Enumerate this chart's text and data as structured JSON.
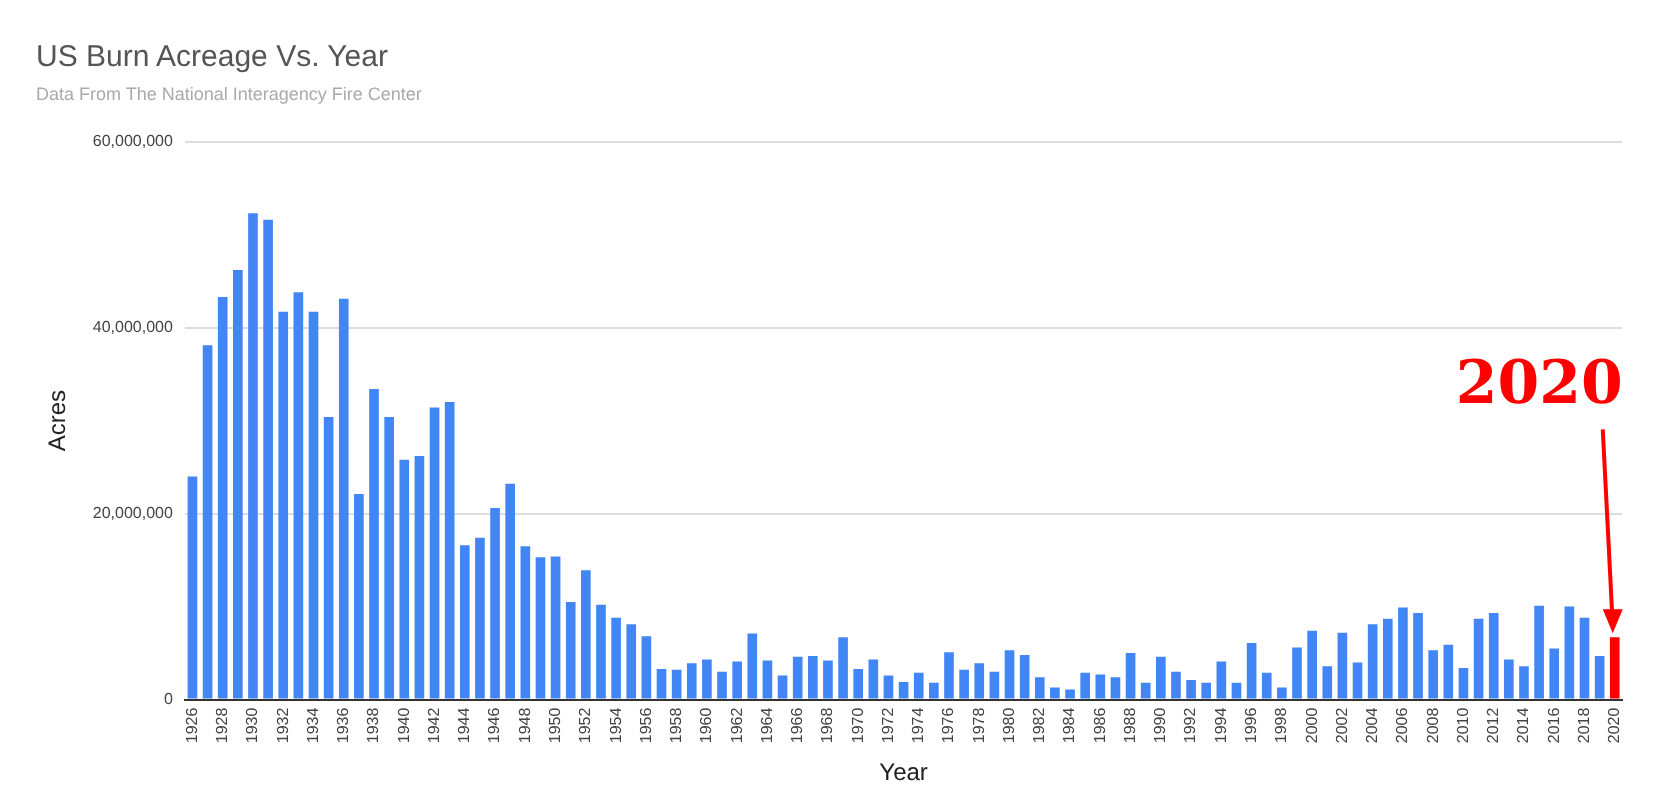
{
  "chart_data": {
    "type": "bar",
    "title": "US Burn Acreage Vs. Year",
    "subtitle": "Data From The National Interagency Fire Center",
    "xlabel": "Year",
    "ylabel": "Acres",
    "categories": [
      "1926",
      null,
      "1928",
      null,
      "1930",
      null,
      "1932",
      null,
      "1934",
      null,
      "1936",
      null,
      "1938",
      null,
      "1940",
      null,
      "1942",
      null,
      "1944",
      null,
      "1946",
      null,
      "1948",
      null,
      "1950",
      null,
      "1952",
      null,
      "1954",
      null,
      "1956",
      null,
      "1958",
      null,
      "1960",
      null,
      "1962",
      null,
      "1964",
      null,
      "1966",
      null,
      "1968",
      null,
      "1970",
      null,
      "1972",
      null,
      "1974",
      null,
      "1976",
      null,
      "1978",
      null,
      "1980",
      null,
      "1982",
      null,
      "1984",
      null,
      "1986",
      null,
      "1988",
      null,
      "1990",
      null,
      "1992",
      null,
      "1994",
      null,
      "1996",
      null,
      "1998",
      null,
      "2000",
      null,
      "2002",
      null,
      "2004",
      null,
      "2006",
      null,
      "2008",
      null,
      "2010",
      null,
      "2012",
      null,
      "2014",
      null,
      "2016",
      null,
      "2018",
      null,
      "2020"
    ],
    "values": [
      24000000,
      38100000,
      43300000,
      46200000,
      52300000,
      51600000,
      41700000,
      43800000,
      41700000,
      30400000,
      43100000,
      22100000,
      33400000,
      30400000,
      25800000,
      26200000,
      31400000,
      32000000,
      16600000,
      17400000,
      20600000,
      23200000,
      16500000,
      15300000,
      15400000,
      10500000,
      13900000,
      10200000,
      8800000,
      8100000,
      6800000,
      3300000,
      3200000,
      3900000,
      4300000,
      3000000,
      4100000,
      7100000,
      4200000,
      2600000,
      4600000,
      4700000,
      4200000,
      6700000,
      3300000,
      4300000,
      2600000,
      1900000,
      2900000,
      1800000,
      5100000,
      3200000,
      3900000,
      3000000,
      5300000,
      4800000,
      2400000,
      1300000,
      1100000,
      2900000,
      2700000,
      2400000,
      5000000,
      1800000,
      4600000,
      3000000,
      2100000,
      1800000,
      4100000,
      1800000,
      6100000,
      2900000,
      1300000,
      5600000,
      7400000,
      3600000,
      7200000,
      4000000,
      8100000,
      8700000,
      9900000,
      9300000,
      5300000,
      5900000,
      3400000,
      8700000,
      9300000,
      4300000,
      3600000,
      10100000,
      5500000,
      10000000,
      8800000,
      4700000,
      6700000
    ],
    "colors": [
      "#4285f4",
      "#4285f4",
      "#4285f4",
      "#4285f4",
      "#4285f4",
      "#4285f4",
      "#4285f4",
      "#4285f4",
      "#4285f4",
      "#4285f4",
      "#4285f4",
      "#4285f4",
      "#4285f4",
      "#4285f4",
      "#4285f4",
      "#4285f4",
      "#4285f4",
      "#4285f4",
      "#4285f4",
      "#4285f4",
      "#4285f4",
      "#4285f4",
      "#4285f4",
      "#4285f4",
      "#4285f4",
      "#4285f4",
      "#4285f4",
      "#4285f4",
      "#4285f4",
      "#4285f4",
      "#4285f4",
      "#4285f4",
      "#4285f4",
      "#4285f4",
      "#4285f4",
      "#4285f4",
      "#4285f4",
      "#4285f4",
      "#4285f4",
      "#4285f4",
      "#4285f4",
      "#4285f4",
      "#4285f4",
      "#4285f4",
      "#4285f4",
      "#4285f4",
      "#4285f4",
      "#4285f4",
      "#4285f4",
      "#4285f4",
      "#4285f4",
      "#4285f4",
      "#4285f4",
      "#4285f4",
      "#4285f4",
      "#4285f4",
      "#4285f4",
      "#4285f4",
      "#4285f4",
      "#4285f4",
      "#4285f4",
      "#4285f4",
      "#4285f4",
      "#4285f4",
      "#4285f4",
      "#4285f4",
      "#4285f4",
      "#4285f4",
      "#4285f4",
      "#4285f4",
      "#4285f4",
      "#4285f4",
      "#4285f4",
      "#4285f4",
      "#4285f4",
      "#4285f4",
      "#4285f4",
      "#4285f4",
      "#4285f4",
      "#4285f4",
      "#4285f4",
      "#4285f4",
      "#4285f4",
      "#4285f4",
      "#4285f4",
      "#4285f4",
      "#4285f4",
      "#4285f4",
      "#4285f4",
      "#4285f4",
      "#4285f4",
      "#4285f4",
      "#4285f4",
      "#4285f4",
      "#ff0000"
    ],
    "ylim": [
      0,
      60000000
    ],
    "yticks": [
      {
        "value": 0,
        "label": "0"
      },
      {
        "value": 20000000,
        "label": "20,000,000"
      },
      {
        "value": 40000000,
        "label": "40,000,000"
      },
      {
        "value": 60000000,
        "label": "60,000,000"
      }
    ],
    "grid": "y",
    "legend": false,
    "annotations": [
      {
        "text": "2020",
        "x": "2020",
        "y": 6700000
      }
    ]
  }
}
